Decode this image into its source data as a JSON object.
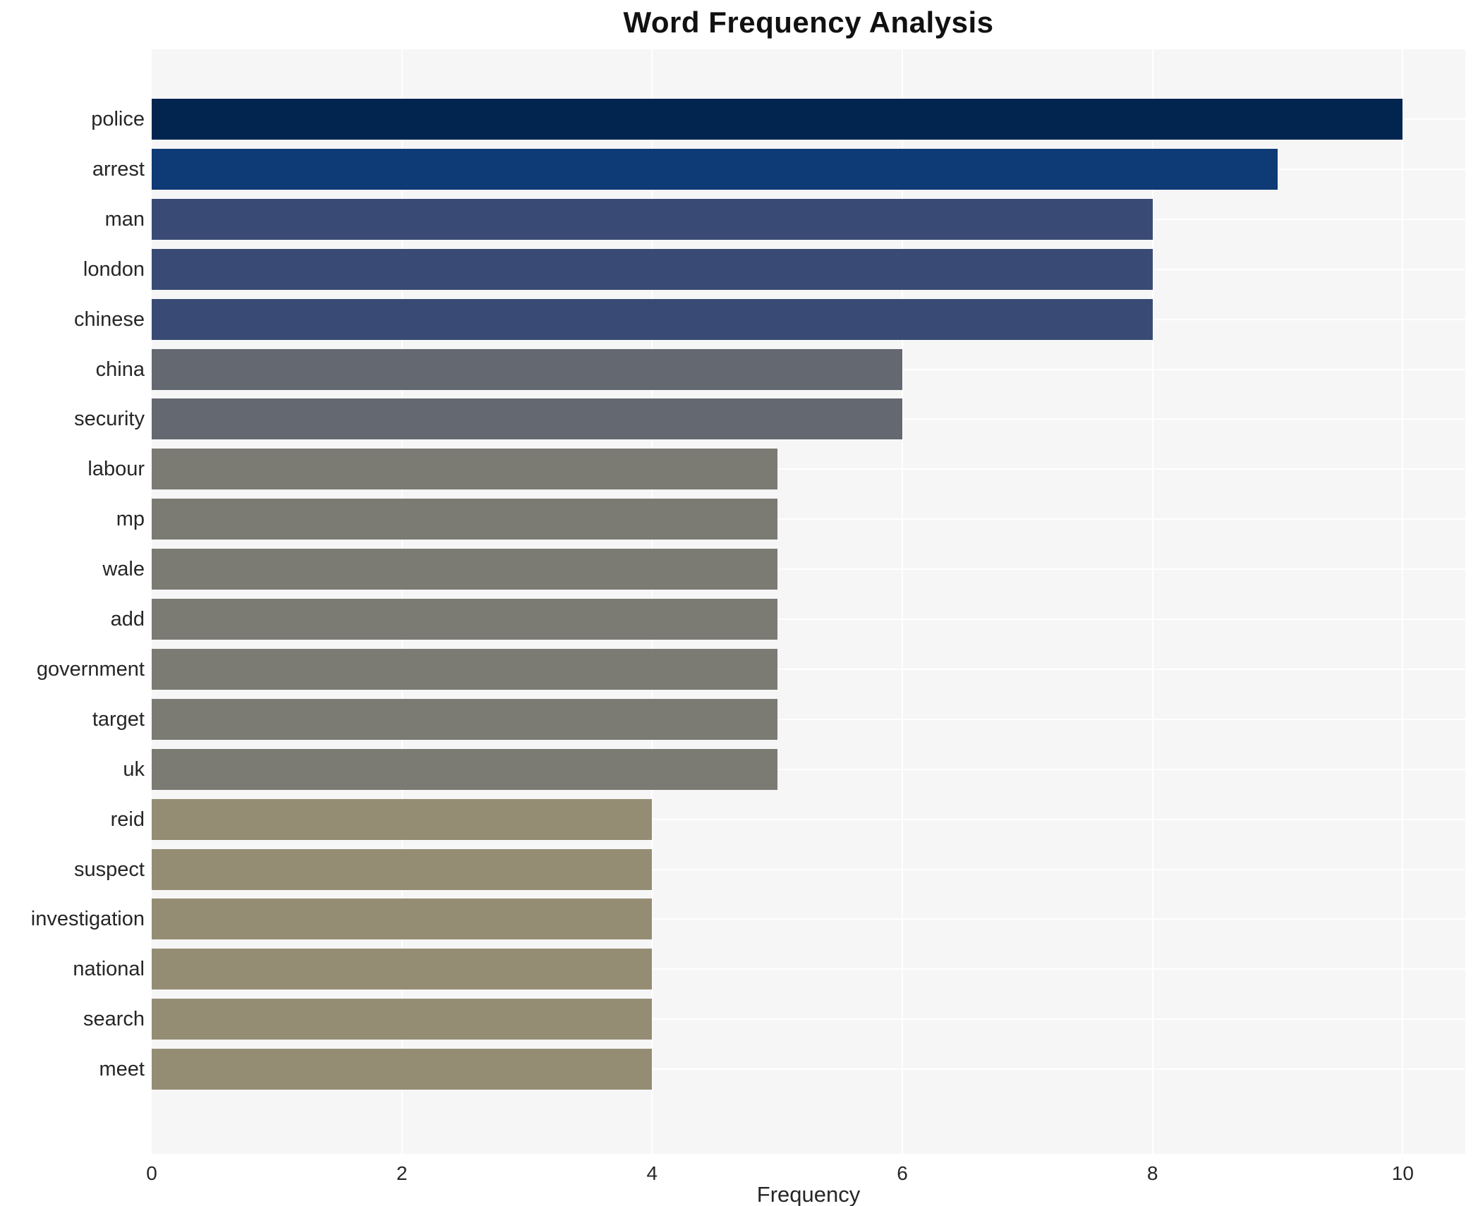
{
  "chart_data": {
    "type": "bar",
    "orientation": "horizontal",
    "title": "Word Frequency Analysis",
    "xlabel": "Frequency",
    "ylabel": "",
    "categories": [
      "police",
      "arrest",
      "man",
      "london",
      "chinese",
      "china",
      "security",
      "labour",
      "mp",
      "wale",
      "add",
      "government",
      "target",
      "uk",
      "reid",
      "suspect",
      "investigation",
      "national",
      "search",
      "meet"
    ],
    "values": [
      10,
      9,
      8,
      8,
      8,
      6,
      6,
      5,
      5,
      5,
      5,
      5,
      5,
      5,
      4,
      4,
      4,
      4,
      4,
      4
    ],
    "bar_colors": [
      "#02254f",
      "#0e3a76",
      "#394b74",
      "#394b74",
      "#394b74",
      "#646870",
      "#646870",
      "#7b7a73",
      "#7b7a73",
      "#7b7a73",
      "#7b7a73",
      "#7b7a73",
      "#7b7a73",
      "#7b7a73",
      "#948d74",
      "#948d74",
      "#948d74",
      "#948d74",
      "#948d74",
      "#948d74"
    ],
    "xticks": [
      0,
      2,
      4,
      6,
      8,
      10
    ],
    "xlim": [
      0,
      10.5
    ],
    "grid": true,
    "legend": false
  },
  "colors": {
    "plot_bg": "#f6f6f7",
    "grid": "#ffffff",
    "text": "#262626"
  }
}
